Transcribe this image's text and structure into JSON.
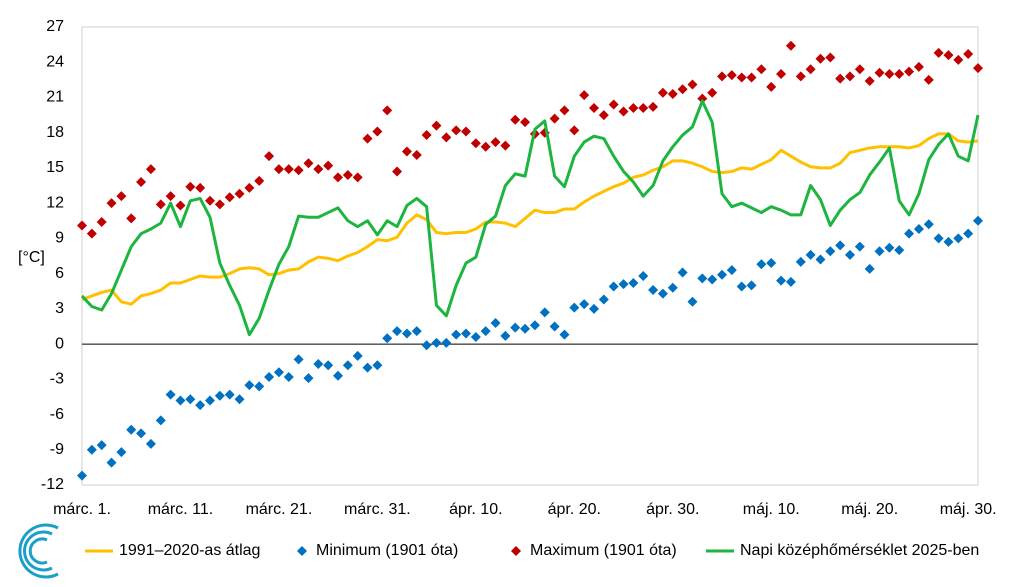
{
  "chart_data": {
    "type": "line",
    "ylabel": "[°C]",
    "categories": [
      "márc. 1.",
      null,
      null,
      null,
      null,
      null,
      null,
      null,
      null,
      null,
      "márc. 11.",
      null,
      null,
      null,
      null,
      null,
      null,
      null,
      null,
      null,
      "márc. 21.",
      null,
      null,
      null,
      null,
      null,
      null,
      null,
      null,
      null,
      "márc. 31.",
      null,
      null,
      null,
      null,
      null,
      null,
      null,
      null,
      null,
      "ápr. 10.",
      null,
      null,
      null,
      null,
      null,
      null,
      null,
      null,
      null,
      "ápr. 20.",
      null,
      null,
      null,
      null,
      null,
      null,
      null,
      null,
      null,
      "ápr. 30.",
      null,
      null,
      null,
      null,
      null,
      null,
      null,
      null,
      null,
      "máj. 10.",
      null,
      null,
      null,
      null,
      null,
      null,
      null,
      null,
      null,
      "máj. 20.",
      null,
      null,
      null,
      null,
      null,
      null,
      null,
      null,
      null,
      "máj. 30.",
      null
    ],
    "ylim": [
      -12,
      27
    ],
    "yticks": [
      -12,
      -9,
      -6,
      -3,
      0,
      3,
      6,
      9,
      12,
      15,
      18,
      21,
      24,
      27
    ],
    "series": [
      {
        "name": "1991–2020-as átlag",
        "color": "#ffc000",
        "style": "line",
        "values": [
          3.8,
          4.1,
          4.4,
          4.6,
          3.6,
          3.4,
          4.1,
          4.3,
          4.6,
          5.2,
          5.2,
          5.5,
          5.8,
          5.7,
          5.7,
          6.0,
          6.4,
          6.5,
          6.4,
          5.9,
          6.0,
          6.3,
          6.4,
          7.0,
          7.4,
          7.3,
          7.1,
          7.5,
          7.8,
          8.3,
          8.9,
          8.8,
          9.1,
          10.3,
          11.0,
          10.6,
          9.5,
          9.4,
          9.5,
          9.5,
          9.8,
          10.4,
          10.4,
          10.3,
          10.0,
          10.7,
          11.4,
          11.2,
          11.2,
          11.5,
          11.5,
          12.1,
          12.6,
          13.0,
          13.4,
          13.7,
          14.2,
          14.4,
          14.8,
          15.1,
          15.6,
          15.6,
          15.4,
          15.1,
          14.7,
          14.6,
          14.7,
          15.0,
          14.9,
          15.3,
          15.7,
          16.5,
          16.0,
          15.5,
          15.1,
          15.0,
          15.0,
          15.4,
          16.3,
          16.5,
          16.7,
          16.8,
          16.8,
          16.8,
          16.7,
          16.9,
          17.5,
          17.9,
          17.9,
          17.3,
          17.2,
          17.3
        ]
      },
      {
        "name": "Minimum (1901 óta)",
        "color": "#0070c0",
        "style": "markers",
        "values": [
          -11.2,
          -9.0,
          -8.6,
          -10.1,
          -9.2,
          -7.3,
          -7.6,
          -8.5,
          -6.5,
          -4.3,
          -4.8,
          -4.7,
          -5.2,
          -4.8,
          -4.4,
          -4.3,
          -4.7,
          -3.5,
          -3.6,
          -2.8,
          -2.4,
          -2.8,
          -1.3,
          -2.9,
          -1.7,
          -1.8,
          -2.7,
          -1.8,
          -1.0,
          -2.0,
          -1.8,
          0.5,
          1.1,
          0.9,
          1.1,
          -0.1,
          0.1,
          0.1,
          0.8,
          0.9,
          0.6,
          1.1,
          1.8,
          0.7,
          1.4,
          1.3,
          1.6,
          2.7,
          1.5,
          0.8,
          3.1,
          3.4,
          3.0,
          3.8,
          4.9,
          5.1,
          5.2,
          5.8,
          4.6,
          4.3,
          4.8,
          6.1,
          3.6,
          5.6,
          5.5,
          5.9,
          6.3,
          4.9,
          5.0,
          6.8,
          6.9,
          5.4,
          5.3,
          7.0,
          7.6,
          7.2,
          7.9,
          8.4,
          7.6,
          8.3,
          6.4,
          7.9,
          8.2,
          8.0,
          9.4,
          9.8,
          10.2,
          9.0,
          8.7,
          9.0,
          9.4,
          10.5
        ]
      },
      {
        "name": "Maximum (1901 óta)",
        "color": "#c00000",
        "style": "markers",
        "values": [
          10.1,
          9.4,
          10.4,
          12.0,
          12.6,
          10.7,
          13.8,
          14.9,
          11.9,
          12.6,
          11.8,
          13.4,
          13.3,
          12.2,
          11.9,
          12.5,
          12.8,
          13.3,
          13.9,
          16.0,
          14.9,
          14.9,
          14.8,
          15.4,
          14.9,
          15.2,
          14.2,
          14.4,
          14.2,
          17.5,
          18.1,
          19.9,
          14.7,
          16.4,
          16.1,
          17.8,
          18.6,
          17.6,
          18.2,
          18.1,
          17.1,
          16.8,
          17.2,
          16.9,
          19.1,
          18.9,
          17.9,
          18.0,
          19.2,
          19.9,
          18.2,
          21.2,
          20.1,
          19.5,
          20.4,
          19.8,
          20.1,
          20.1,
          20.2,
          21.4,
          21.3,
          21.7,
          22.1,
          20.9,
          21.4,
          22.8,
          22.9,
          22.7,
          22.7,
          23.4,
          21.9,
          23.0,
          25.4,
          22.8,
          23.4,
          24.3,
          24.4,
          22.6,
          22.8,
          23.4,
          22.4,
          23.1,
          23.0,
          23.0,
          23.2,
          23.6,
          22.5,
          24.8,
          24.6,
          24.2,
          24.7,
          23.5
        ]
      },
      {
        "name": "Napi középhőmérséklet 2025-ben",
        "color": "#1db53f",
        "style": "line",
        "values": [
          4.1,
          3.2,
          2.9,
          4.3,
          6.3,
          8.3,
          9.4,
          9.8,
          10.3,
          12.0,
          10.0,
          12.2,
          12.4,
          10.8,
          6.9,
          5.0,
          3.3,
          0.8,
          2.2,
          4.6,
          6.8,
          8.3,
          10.9,
          10.8,
          10.8,
          11.2,
          11.6,
          10.5,
          10.0,
          10.5,
          9.3,
          10.5,
          10.0,
          11.8,
          12.4,
          11.7,
          3.3,
          2.4,
          5.0,
          6.9,
          7.4,
          10.2,
          10.9,
          13.5,
          14.5,
          14.3,
          18.3,
          19.0,
          14.3,
          13.4,
          16.0,
          17.2,
          17.7,
          17.5,
          16.0,
          14.7,
          13.8,
          12.6,
          13.5,
          15.6,
          16.8,
          17.8,
          18.5,
          20.7,
          18.9,
          12.8,
          11.7,
          12.0,
          11.6,
          11.2,
          11.7,
          11.4,
          11.0,
          11.0,
          13.5,
          12.3,
          10.1,
          11.4,
          12.3,
          12.9,
          14.4,
          15.5,
          16.7,
          12.2,
          11.0,
          12.8,
          15.7,
          17.0,
          17.9,
          16.0,
          15.6,
          19.5
        ]
      }
    ]
  }
}
